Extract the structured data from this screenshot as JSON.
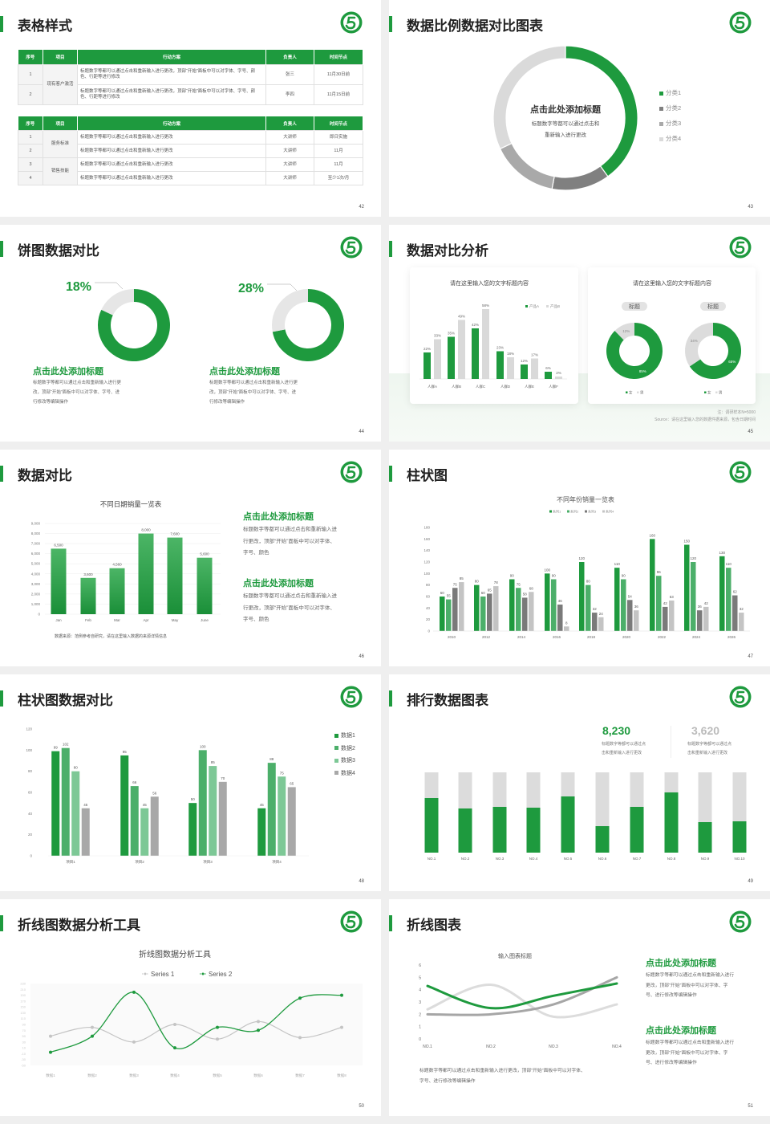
{
  "colors": {
    "green": "#1e9a3e",
    "green2": "#4caf6a",
    "green3": "#7dc896",
    "gray_dark": "#808080",
    "gray_mid": "#a9a9a9",
    "gray_light": "#dadada"
  },
  "logo_icon": "green-circle-s-logo",
  "slides": {
    "s42": {
      "title": "表格样式",
      "page": "42",
      "table1": {
        "headers": [
          "序号",
          "项目",
          "行动方案",
          "负责人",
          "时间节点"
        ],
        "groups": [
          {
            "item": "现有客户激活",
            "rows": [
              {
                "no": "1",
                "plan": "标题数字等都可以通过点击和重新输入进行更改，顶部“开始”面板中可以对字体、字号、颜色、行距等进行修改",
                "person": "张三",
                "time": "11月30日前"
              },
              {
                "no": "2",
                "plan": "标题数字等都可以通过点击和重新输入进行更改，顶部“开始”面板中可以对字体、字号、颜色、行距等进行修改",
                "person": "李四",
                "time": "11月15日前"
              }
            ]
          }
        ]
      },
      "table2": {
        "headers": [
          "序号",
          "项目",
          "行动方案",
          "负责人",
          "时间节点"
        ],
        "groups": [
          {
            "item": "服务标准",
            "rows": [
              {
                "no": "1",
                "plan": "标题数字等都可以通过点击和重新输入进行更改",
                "person": "大讲师",
                "time": "即日实施"
              },
              {
                "no": "2",
                "plan": "标题数字等都可以通过点击和重新输入进行更改",
                "person": "大讲师",
                "time": "11月"
              }
            ]
          },
          {
            "item": "销售技能",
            "rows": [
              {
                "no": "3",
                "plan": "标题数字等都可以通过点击和重新输入进行更改",
                "person": "大讲师",
                "time": "11月"
              },
              {
                "no": "4",
                "plan": "标题数字等都可以通过点击和重新输入进行更改",
                "person": "大讲师",
                "time": "至少1次/月"
              }
            ]
          }
        ]
      }
    },
    "s43": {
      "title": "数据比例数据对比图表",
      "page": "43",
      "heading": "点击此处添加标题",
      "body": [
        "标题数字等都可以通过点击和",
        "重新输入进行更改"
      ]
    },
    "s44": {
      "title": "饼图数据对比",
      "page": "44",
      "blocks": [
        {
          "heading": "点击此处添加标题",
          "body": [
            "标题数字等都可以通过点击和重新输入进行更",
            "改，顶部“开始”面板中可以对字体、字号、进",
            "行修改等编辑操作"
          ]
        },
        {
          "heading": "点击此处添加标题",
          "body": [
            "标题数字等都可以通过点击和重新输入进行更",
            "改，顶部“开始”面板中可以对字体、字号、进",
            "行修改等编辑操作"
          ]
        }
      ]
    },
    "s45": {
      "title": "数据对比分析",
      "page": "45",
      "notes": [
        "注：调研样本N=5000",
        "Source：请在这里输入您的数据件据来源，包含日期时间"
      ]
    },
    "s46": {
      "title": "数据对比",
      "page": "46",
      "source": "数据来源：范例参考自研究，请在这里输入数据的来源详情信息",
      "blocks": [
        {
          "heading": "点击此处添加标题",
          "body": [
            "标题数字等都可以通过点击和重新输入进",
            "行更改，顶部“开始”面板中可以对字体、",
            "字号、颜色"
          ]
        },
        {
          "heading": "点击此处添加标题",
          "body": [
            "标题数字等都可以通过点击和重新输入进",
            "行更改，顶部“开始”面板中可以对字体、",
            "字号、颜色"
          ]
        }
      ]
    },
    "s47": {
      "title": "柱状图",
      "page": "47"
    },
    "s48": {
      "title": "柱状图数据对比",
      "page": "48"
    },
    "s49": {
      "title": "排行数据图表",
      "page": "49",
      "stats": [
        {
          "value": "8,230",
          "desc": [
            "标题数字等都可以通过点",
            "击和重新输入进行更改"
          ]
        },
        {
          "value": "3,620",
          "desc": [
            "标题数字等都可以通过点",
            "击和重新输入进行更改"
          ]
        }
      ]
    },
    "s50": {
      "title": "折线图数据分析工具",
      "page": "50"
    },
    "s51": {
      "title": "折线图表",
      "page": "51",
      "bottom_text": [
        "标题数字等都可以通过点击和重新输入进行更改，顶部“开始”面板中可以对字体、",
        "字号、进行修改等编辑操作"
      ],
      "blocks": [
        {
          "heading": "点击此处添加标题",
          "body": [
            "标题数字等都可以通过点击和重新输入进行",
            "更改，顶部“开始”面板中可以对字体、字",
            "号、进行修改等编辑操作"
          ]
        },
        {
          "heading": "点击此处添加标题",
          "body": [
            "标题数字等都可以通过点击和重新输入进行",
            "更改，顶部“开始”面板中可以对字体、字",
            "号、进行修改等编辑操作"
          ]
        }
      ]
    }
  },
  "chart_data": [
    {
      "type": "pie",
      "categories": [
        "分类1",
        "分类2",
        "分类3",
        "分类4"
      ],
      "values": [
        40,
        13,
        15,
        32
      ],
      "colors": [
        "#1e9a3e",
        "#808080",
        "#a9a9a9",
        "#dadada"
      ],
      "legend": "right"
    },
    {
      "type": "pie",
      "values": [
        82,
        18
      ],
      "label": "18%",
      "colors": [
        "#1e9a3e",
        "#e6e6e6"
      ]
    },
    {
      "type": "pie",
      "values": [
        72,
        28
      ],
      "label": "28%",
      "colors": [
        "#1e9a3e",
        "#e6e6e6"
      ]
    },
    {
      "type": "bar",
      "title": "请在这里输入您的文字标题内容",
      "categories": [
        "人群A",
        "人群B",
        "人群C",
        "人群D",
        "人群E",
        "人群F"
      ],
      "series": [
        {
          "name": "产品A",
          "values": [
            22,
            35,
            42,
            23,
            12,
            6
          ],
          "labels": [
            "22%",
            "35%",
            "42%",
            "23%",
            "12%",
            "6%"
          ],
          "color": "#1e9a3e"
        },
        {
          "name": "产品B",
          "values": [
            33,
            49,
            58,
            18,
            17,
            2
          ],
          "labels": [
            "33%",
            "49%",
            "58%",
            "18%",
            "17%",
            "2%"
          ],
          "color": "#d9d9d9"
        }
      ],
      "legend": "top-right"
    },
    {
      "type": "pie",
      "title": "请在这里输入您的文字标题内容",
      "pill": "标题",
      "categories": [
        "女",
        "男"
      ],
      "values": [
        85,
        12
      ],
      "labels": [
        "85%",
        "12%"
      ],
      "colors": [
        "#1e9a3e",
        "#dcdcdc"
      ]
    },
    {
      "type": "pie",
      "pill": "标题",
      "categories": [
        "女",
        "男"
      ],
      "values": [
        65,
        34
      ],
      "labels": [
        "65%",
        "34%"
      ],
      "colors": [
        "#1e9a3e",
        "#dcdcdc"
      ]
    },
    {
      "type": "bar",
      "title": "不同日期销量一览表",
      "categories": [
        "Jan",
        "Feb",
        "Mar",
        "Apr",
        "May",
        "June"
      ],
      "values": [
        6500,
        3600,
        4560,
        8000,
        7600,
        5600
      ],
      "labels": [
        "6,500",
        "3,600",
        "4,560",
        "8,000",
        "7,600",
        "5,600"
      ],
      "ylim": [
        0,
        9000
      ],
      "yticks": [
        "0",
        "1,000",
        "2,000",
        "3,000",
        "4,000",
        "5,000",
        "6,000",
        "7,000",
        "8,000",
        "9,000"
      ],
      "grid": true
    },
    {
      "type": "bar",
      "title": "不同年份销量一览表",
      "categories": [
        "2010",
        "2012",
        "2014",
        "2016",
        "2018",
        "2020",
        "2022",
        "2024",
        "2026"
      ],
      "ylim": [
        0,
        180
      ],
      "yticks": [
        "0",
        "20",
        "40",
        "60",
        "80",
        "100",
        "120",
        "140",
        "160",
        "180"
      ],
      "legend": "top",
      "series": [
        {
          "name": "系列1",
          "values": [
            60,
            80,
            90,
            100,
            120,
            110,
            160,
            150,
            130
          ],
          "color": "#1e9a3e"
        },
        {
          "name": "系列2",
          "values": [
            55,
            60,
            75,
            90,
            80,
            90,
            96,
            120,
            110
          ],
          "color": "#4caf6a"
        },
        {
          "name": "系列3",
          "values": [
            75,
            65,
            58,
            46,
            32,
            54,
            42,
            36,
            62
          ],
          "color": "#7a7a7a"
        },
        {
          "name": "系列4",
          "values": [
            85,
            78,
            68,
            8,
            24,
            36,
            53,
            42,
            32
          ],
          "color": "#c4c4c4"
        }
      ]
    },
    {
      "type": "bar",
      "categories": [
        "项目1",
        "项目2",
        "项目3",
        "项目4"
      ],
      "ylim": [
        0,
        120
      ],
      "yticks": [
        "0",
        "20",
        "40",
        "60",
        "80",
        "100",
        "120"
      ],
      "legend": "right",
      "series": [
        {
          "name": "数据1",
          "values": [
            99,
            95,
            50,
            45
          ],
          "color": "#1e9a3e"
        },
        {
          "name": "数据2",
          "values": [
            102,
            66,
            100,
            88
          ],
          "color": "#4caf6a"
        },
        {
          "name": "数据3",
          "values": [
            80,
            45,
            85,
            75
          ],
          "color": "#7dc896"
        },
        {
          "name": "数据4",
          "values": [
            45,
            56,
            70,
            65
          ],
          "color": "#a8a8a8"
        }
      ]
    },
    {
      "type": "bar",
      "stacked": true,
      "categories": [
        "NO.1",
        "NO.2",
        "NO.3",
        "NO.4",
        "NO.5",
        "NO.6",
        "NO.7",
        "NO.8",
        "NO.9",
        "NO.10"
      ],
      "values": [
        0.68,
        0.55,
        0.57,
        0.56,
        0.7,
        0.33,
        0.57,
        0.75,
        0.38,
        0.39
      ],
      "colors": [
        "#1e9a3e",
        "#dcdcdc"
      ]
    },
    {
      "type": "line",
      "title": "折线图数据分析工具",
      "categories": [
        "数据1",
        "数据2",
        "数据3",
        "数据4",
        "数据5",
        "数据6",
        "数据7",
        "数据8"
      ],
      "ylim": [
        -50,
        230
      ],
      "yticks": [
        "-50",
        "-30",
        "-10",
        "10",
        "30",
        "50",
        "70",
        "90",
        "110",
        "130",
        "150",
        "170",
        "190",
        "210",
        "230"
      ],
      "legend": "top",
      "series": [
        {
          "name": "Series 1",
          "values": [
            50,
            80,
            30,
            90,
            40,
            100,
            45,
            80
          ],
          "color": "#c4c4c4"
        },
        {
          "name": "Series 2",
          "values": [
            -5,
            50,
            200,
            10,
            80,
            70,
            180,
            190
          ],
          "color": "#1e9a3e"
        }
      ]
    },
    {
      "type": "line",
      "title": "输入图表标题",
      "categories": [
        "NO.1",
        "NO.2",
        "NO.3",
        "NO.4"
      ],
      "ylim": [
        0,
        6
      ],
      "yticks": [
        "0",
        "1",
        "2",
        "3",
        "4",
        "5",
        "6"
      ],
      "series": [
        {
          "values": [
            2.4,
            4.4,
            1.8,
            2.8
          ],
          "color": "#dcdcdc"
        },
        {
          "values": [
            2,
            2,
            2.8,
            5
          ],
          "color": "#a6a6a6"
        },
        {
          "values": [
            4.3,
            2.5,
            3.5,
            4.5
          ],
          "color": "#1e9a3e"
        }
      ]
    }
  ]
}
